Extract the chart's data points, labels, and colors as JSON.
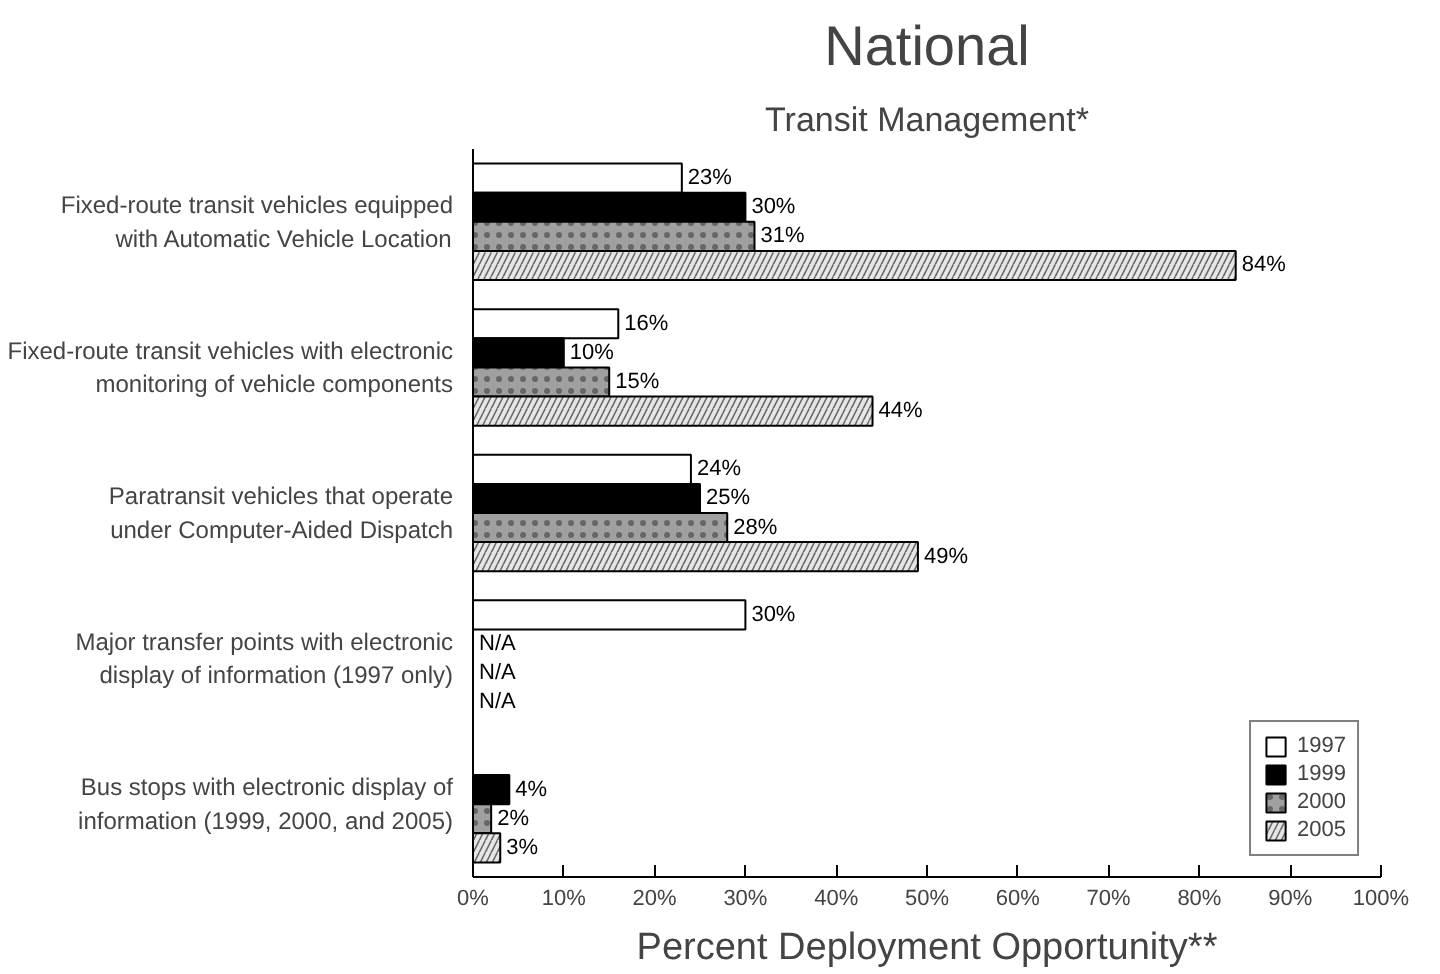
{
  "chart_data": {
    "type": "bar",
    "orientation": "horizontal",
    "title": "National",
    "subtitle": "Transit Management*",
    "xlabel": "Percent Deployment Opportunity**",
    "categories": [
      "Fixed-route transit vehicles equipped\nwith Automatic Vehicle Location",
      "Fixed-route transit vehicles with electronic\nmonitoring of vehicle components",
      "Paratransit vehicles that operate\nunder Computer-Aided Dispatch",
      "Major transfer points with electronic\ndisplay of information (1997 only)",
      "Bus stops with electronic display of\ninformation (1999, 2000, and 2005)"
    ],
    "series": [
      {
        "name": "1997",
        "color": "#ffffff",
        "values": [
          23,
          16,
          24,
          30,
          null
        ],
        "value_labels": [
          "23%",
          "16%",
          "24%",
          "30%",
          null
        ]
      },
      {
        "name": "1999",
        "color": "#000000",
        "values": [
          30,
          10,
          25,
          null,
          4
        ],
        "value_labels": [
          "30%",
          "10%",
          "25%",
          "N/A",
          "4%"
        ]
      },
      {
        "name": "2000",
        "color": "#a0a0a0",
        "values": [
          31,
          15,
          28,
          null,
          2
        ],
        "value_labels": [
          "31%",
          "15%",
          "28%",
          "N/A",
          "2%"
        ]
      },
      {
        "name": "2005",
        "color": "#e6e6e6",
        "values": [
          84,
          44,
          49,
          null,
          3
        ],
        "value_labels": [
          "84%",
          "44%",
          "49%",
          "N/A",
          "3%"
        ]
      }
    ],
    "xlim": [
      0,
      100
    ],
    "xticks": [
      {
        "value": 0,
        "label": "0%"
      },
      {
        "value": 10,
        "label": "10%"
      },
      {
        "value": 20,
        "label": "20%"
      },
      {
        "value": 30,
        "label": "30%"
      },
      {
        "value": 40,
        "label": "40%"
      },
      {
        "value": 50,
        "label": "50%"
      },
      {
        "value": 60,
        "label": "60%"
      },
      {
        "value": 70,
        "label": "70%"
      },
      {
        "value": 80,
        "label": "80%"
      },
      {
        "value": 90,
        "label": "90%"
      },
      {
        "value": 100,
        "label": "100%"
      }
    ],
    "legend": "bottom right",
    "grid": false
  }
}
